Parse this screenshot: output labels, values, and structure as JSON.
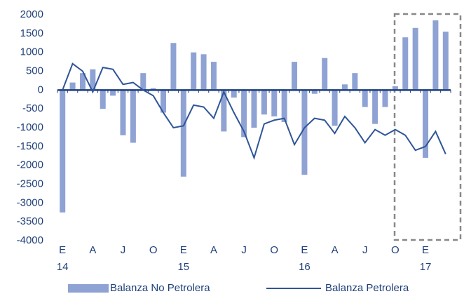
{
  "chart_data": {
    "type": "bar-line",
    "categories": [
      "E",
      null,
      null,
      "A",
      null,
      null,
      "J",
      null,
      null,
      "O",
      null,
      null,
      "E",
      null,
      null,
      "A",
      null,
      null,
      "J",
      null,
      null,
      "O",
      null,
      null,
      "E",
      null,
      null,
      "A",
      null,
      null,
      "J",
      null,
      null,
      "O",
      null,
      null,
      "E",
      null,
      null
    ],
    "year_labels": [
      "14",
      null,
      null,
      null,
      null,
      null,
      null,
      null,
      null,
      null,
      null,
      null,
      "15",
      null,
      null,
      null,
      null,
      null,
      null,
      null,
      null,
      null,
      null,
      null,
      "16",
      null,
      null,
      null,
      null,
      null,
      null,
      null,
      null,
      null,
      null,
      null,
      "17",
      null,
      null
    ],
    "series": [
      {
        "name": "Balanza No Petrolera",
        "kind": "bar",
        "color": "#8fa2d4",
        "values": [
          -3250,
          200,
          450,
          550,
          -500,
          -150,
          -1200,
          -1400,
          450,
          50,
          -600,
          1250,
          -2300,
          1000,
          950,
          750,
          -1100,
          -200,
          -1250,
          -1000,
          -650,
          -700,
          -850,
          750,
          -2250,
          -100,
          850,
          -950,
          150,
          450,
          -450,
          -900,
          -450,
          100,
          1400,
          1650,
          -1800,
          1850,
          1550
        ]
      },
      {
        "name": "Balanza Petrolera",
        "kind": "line",
        "color": "#2f5597",
        "values": [
          0,
          700,
          500,
          -50,
          600,
          550,
          150,
          200,
          0,
          -150,
          -600,
          -1000,
          -950,
          -400,
          -450,
          -750,
          -50,
          -600,
          -1100,
          -1800,
          -900,
          -800,
          -750,
          -1450,
          -1000,
          -750,
          -800,
          -1150,
          -700,
          -1000,
          -1400,
          -1050,
          -1200,
          -1050,
          -1200,
          -1600,
          -1500,
          -1100,
          -1700
        ]
      }
    ],
    "ylim": [
      -4000,
      2000
    ],
    "yticks": [
      -4000,
      -3500,
      -3000,
      -2500,
      -2000,
      -1500,
      -1000,
      -500,
      0,
      500,
      1000,
      1500,
      2000
    ],
    "grid": false
  }
}
